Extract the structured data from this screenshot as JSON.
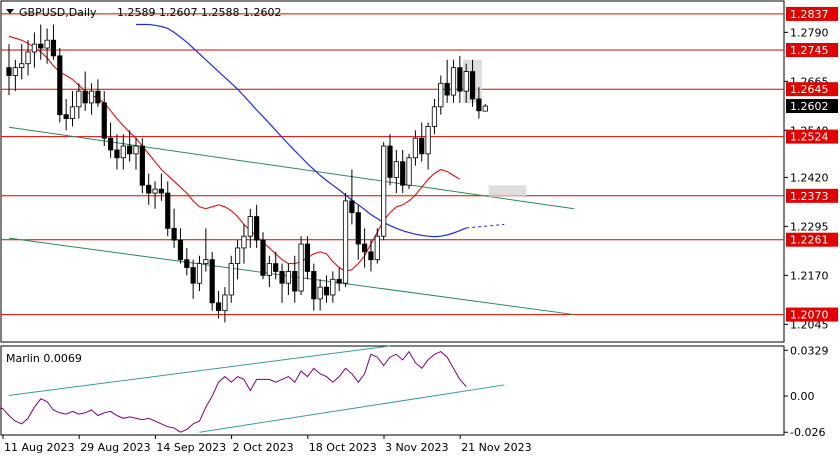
{
  "header": {
    "symbol_timeframe": "GBPUSD,Daily",
    "ohlc": "1.2589 1.2607 1.2588 1.2602"
  },
  "chart_data": [
    {
      "type": "candlestick",
      "symbol": "GBPUSD",
      "timeframe": "Daily",
      "ylim": [
        1.2,
        1.287
      ],
      "price_ticks": [
        "1.2790",
        "1.2665",
        "1.2540",
        "1.2420",
        "1.2295",
        "1.2170",
        "1.2045"
      ],
      "date_labels": [
        "11 Aug 2023",
        "29 Aug 2023",
        "14 Sep 2023",
        "2 Oct 2023",
        "18 Oct 2023",
        "3 Nov 2023",
        "21 Nov 2023"
      ],
      "date_label_bar_index": [
        0,
        12,
        24,
        36,
        48,
        60,
        72
      ],
      "current_price": "1.2602",
      "level_labels": [
        "1.2837",
        "1.2745",
        "1.2645",
        "1.2524",
        "1.2373",
        "1.2261",
        "1.2070"
      ],
      "horizontal_levels": [
        1.2837,
        1.2745,
        1.2645,
        1.2524,
        1.2373,
        1.2261,
        1.207
      ],
      "level_color": "#e00000",
      "up_color": "#ffffff",
      "down_color": "#000000",
      "candles": [
        [
          1.27,
          1.276,
          1.263,
          1.268
        ],
        [
          1.268,
          1.272,
          1.264,
          1.27
        ],
        [
          1.27,
          1.276,
          1.267,
          1.271
        ],
        [
          1.271,
          1.277,
          1.268,
          1.274
        ],
        [
          1.274,
          1.279,
          1.27,
          1.276
        ],
        [
          1.276,
          1.281,
          1.272,
          1.275
        ],
        [
          1.275,
          1.28,
          1.271,
          1.277
        ],
        [
          1.277,
          1.281,
          1.272,
          1.273
        ],
        [
          1.273,
          1.275,
          1.256,
          1.258
        ],
        [
          1.258,
          1.262,
          1.254,
          1.257
        ],
        [
          1.257,
          1.264,
          1.255,
          1.26
        ],
        [
          1.26,
          1.266,
          1.257,
          1.264
        ],
        [
          1.264,
          1.269,
          1.259,
          1.261
        ],
        [
          1.261,
          1.266,
          1.258,
          1.264
        ],
        [
          1.264,
          1.267,
          1.26,
          1.261
        ],
        [
          1.261,
          1.264,
          1.25,
          1.252
        ],
        [
          1.252,
          1.256,
          1.247,
          1.249
        ],
        [
          1.249,
          1.253,
          1.244,
          1.247
        ],
        [
          1.247,
          1.253,
          1.244,
          1.25
        ],
        [
          1.25,
          1.254,
          1.246,
          1.248
        ],
        [
          1.248,
          1.252,
          1.244,
          1.25
        ],
        [
          1.25,
          1.252,
          1.238,
          1.24
        ],
        [
          1.24,
          1.243,
          1.235,
          1.238
        ],
        [
          1.238,
          1.241,
          1.234,
          1.239
        ],
        [
          1.239,
          1.243,
          1.236,
          1.238
        ],
        [
          1.238,
          1.241,
          1.227,
          1.229
        ],
        [
          1.229,
          1.234,
          1.224,
          1.226
        ],
        [
          1.226,
          1.229,
          1.22,
          1.221
        ],
        [
          1.221,
          1.224,
          1.217,
          1.219
        ],
        [
          1.219,
          1.221,
          1.211,
          1.215
        ],
        [
          1.215,
          1.222,
          1.213,
          1.22
        ],
        [
          1.22,
          1.229,
          1.218,
          1.221
        ],
        [
          1.221,
          1.223,
          1.208,
          1.21
        ],
        [
          1.21,
          1.213,
          1.206,
          1.208
        ],
        [
          1.208,
          1.214,
          1.205,
          1.212
        ],
        [
          1.212,
          1.222,
          1.21,
          1.22
        ],
        [
          1.22,
          1.226,
          1.216,
          1.224
        ],
        [
          1.224,
          1.23,
          1.22,
          1.227
        ],
        [
          1.227,
          1.234,
          1.224,
          1.232
        ],
        [
          1.232,
          1.235,
          1.224,
          1.226
        ],
        [
          1.226,
          1.228,
          1.216,
          1.217
        ],
        [
          1.217,
          1.222,
          1.214,
          1.22
        ],
        [
          1.22,
          1.223,
          1.216,
          1.218
        ],
        [
          1.218,
          1.22,
          1.21,
          1.215
        ],
        [
          1.215,
          1.22,
          1.212,
          1.218
        ],
        [
          1.218,
          1.222,
          1.21,
          1.213
        ],
        [
          1.213,
          1.227,
          1.212,
          1.225
        ],
        [
          1.225,
          1.227,
          1.216,
          1.218
        ],
        [
          1.218,
          1.22,
          1.208,
          1.211
        ],
        [
          1.211,
          1.216,
          1.208,
          1.214
        ],
        [
          1.214,
          1.217,
          1.21,
          1.212
        ],
        [
          1.212,
          1.218,
          1.21,
          1.216
        ],
        [
          1.216,
          1.219,
          1.213,
          1.215
        ],
        [
          1.215,
          1.238,
          1.214,
          1.236
        ],
        [
          1.236,
          1.244,
          1.23,
          1.233
        ],
        [
          1.233,
          1.235,
          1.221,
          1.225
        ],
        [
          1.225,
          1.229,
          1.219,
          1.223
        ],
        [
          1.223,
          1.226,
          1.218,
          1.221
        ],
        [
          1.221,
          1.229,
          1.22,
          1.227
        ],
        [
          1.227,
          1.251,
          1.226,
          1.25
        ],
        [
          1.25,
          1.253,
          1.24,
          1.242
        ],
        [
          1.242,
          1.249,
          1.238,
          1.246
        ],
        [
          1.246,
          1.249,
          1.238,
          1.24
        ],
        [
          1.24,
          1.248,
          1.239,
          1.247
        ],
        [
          1.247,
          1.254,
          1.245,
          1.252
        ],
        [
          1.252,
          1.256,
          1.246,
          1.248
        ],
        [
          1.248,
          1.256,
          1.244,
          1.255
        ],
        [
          1.255,
          1.262,
          1.253,
          1.26
        ],
        [
          1.26,
          1.268,
          1.258,
          1.266
        ],
        [
          1.266,
          1.272,
          1.261,
          1.263
        ],
        [
          1.263,
          1.272,
          1.261,
          1.27
        ],
        [
          1.27,
          1.273,
          1.261,
          1.264
        ],
        [
          1.264,
          1.271,
          1.261,
          1.269
        ],
        [
          1.269,
          1.272,
          1.26,
          1.262
        ],
        [
          1.262,
          1.265,
          1.257,
          1.259
        ],
        [
          1.2589,
          1.2607,
          1.2588,
          1.2602
        ]
      ],
      "red_ma": [
        1.278,
        1.2775,
        1.277,
        1.2762,
        1.2752,
        1.274,
        1.2725,
        1.2705,
        1.2688,
        1.268,
        1.267,
        1.2655,
        1.264,
        1.263,
        1.2622,
        1.261,
        1.259,
        1.257,
        1.2552,
        1.2535,
        1.252,
        1.25,
        1.248,
        1.246,
        1.244,
        1.2425,
        1.241,
        1.2395,
        1.238,
        1.236,
        1.2345,
        1.234,
        1.2345,
        1.235,
        1.2345,
        1.2335,
        1.232,
        1.23,
        1.2285,
        1.227,
        1.2255,
        1.224,
        1.2225,
        1.221,
        1.22,
        1.22,
        1.2205,
        1.2215,
        1.2225,
        1.223,
        1.2225,
        1.2205,
        1.219,
        1.218,
        1.2185,
        1.22,
        1.222,
        1.225,
        1.228,
        1.231,
        1.233,
        1.2345,
        1.235,
        1.236,
        1.2375,
        1.2395,
        1.2415,
        1.243,
        1.244,
        1.2435,
        1.2425,
        1.2415
      ],
      "red_ma_start_index": 0,
      "blue_ma": [
        1.281,
        1.281,
        1.281,
        1.2808,
        1.2805,
        1.28,
        1.279,
        1.2778,
        1.2765,
        1.275,
        1.2735,
        1.272,
        1.2705,
        1.269,
        1.2675,
        1.266,
        1.2645,
        1.2628,
        1.261,
        1.2592,
        1.2575,
        1.2558,
        1.254,
        1.2522,
        1.2505,
        1.2488,
        1.2472,
        1.2455,
        1.244,
        1.2425,
        1.2412,
        1.24,
        1.2388,
        1.2375,
        1.2362,
        1.235,
        1.2338,
        1.2325,
        1.2315,
        1.2305,
        1.2297,
        1.229,
        1.2284,
        1.2279,
        1.2275,
        1.2272,
        1.227,
        1.2269,
        1.227,
        1.2273,
        1.2278,
        1.2284,
        1.2291
      ],
      "blue_ma_start_index": 20,
      "blue_ma_projection": [
        [
          72,
          1.2291
        ],
        [
          78,
          1.23
        ]
      ],
      "green_trendlines": [
        [
          [
            0,
            1.2548
          ],
          [
            89,
            1.234
          ]
        ],
        [
          [
            0,
            1.2265
          ],
          [
            89,
            1.207
          ]
        ]
      ],
      "gray_zones": [
        {
          "x": [
            72,
            74
          ],
          "y": [
            1.261,
            1.272
          ]
        },
        {
          "x": [
            76,
            81
          ],
          "y": [
            1.237,
            1.24
          ]
        }
      ]
    },
    {
      "type": "line",
      "name": "Marlin 0.0069",
      "ylim": [
        -0.028,
        0.036
      ],
      "y_ticks": [
        "0.0329",
        "0.00",
        "-0.026"
      ],
      "values": [
        -0.01,
        -0.015,
        -0.014,
        -0.01,
        -0.008,
        -0.009,
        -0.014,
        -0.018,
        -0.02,
        -0.016,
        -0.008,
        -0.002,
        -0.004,
        -0.01,
        -0.012,
        -0.013,
        -0.011,
        -0.013,
        -0.012,
        -0.01,
        -0.014,
        -0.012,
        -0.011,
        -0.014,
        -0.016,
        -0.015,
        -0.016,
        -0.017,
        -0.016,
        -0.018,
        -0.02,
        -0.022,
        -0.023,
        -0.026,
        -0.024,
        -0.02,
        -0.018,
        -0.008,
        0.0,
        0.01,
        0.014,
        0.01,
        0.014,
        0.012,
        0.004,
        0.012,
        0.012,
        0.012,
        0.01,
        0.012,
        0.014,
        0.01,
        0.018,
        0.014,
        0.02,
        0.016,
        0.014,
        0.01,
        0.014,
        0.02,
        0.016,
        0.01,
        0.016,
        0.03,
        0.028,
        0.022,
        0.028,
        0.03,
        0.026,
        0.032,
        0.024,
        0.02,
        0.026,
        0.03,
        0.032,
        0.028,
        0.02,
        0.012,
        0.0069
      ],
      "x_index_offset": -6,
      "value_label": "0.0069",
      "upper_trendline": [
        [
          0,
          0.0005
        ],
        [
          60,
          0.036
        ]
      ],
      "lower_trendline": [
        [
          30,
          -0.026
        ],
        [
          78,
          0.008
        ]
      ],
      "line_color": "#800080"
    }
  ]
}
